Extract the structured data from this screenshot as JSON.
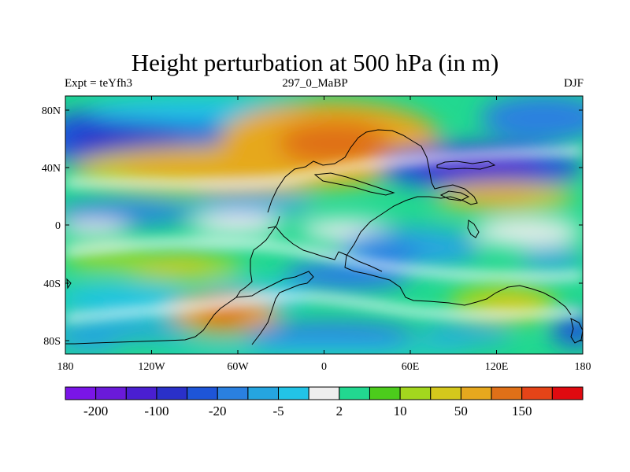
{
  "title": "Height perturbation at 500 hPa (in m)",
  "subtitle_left": "Expt = teYfh3",
  "subtitle_center": "297_0_MaBP",
  "subtitle_right": "DJF",
  "y_ticks": [
    "80N",
    "40N",
    "0",
    "40S",
    "80S"
  ],
  "x_ticks": [
    "180",
    "120W",
    "60W",
    "0",
    "60E",
    "120E",
    "180"
  ],
  "colorbar": {
    "colors": [
      "#7a15e8",
      "#6a1ad9",
      "#4a1fd1",
      "#2a30c9",
      "#1e55d8",
      "#2a80e0",
      "#25a5e0",
      "#22c3e6",
      "#eeeeee",
      "#22d890",
      "#4ccc1c",
      "#a3d71e",
      "#d4c81c",
      "#e6a81e",
      "#e07018",
      "#e54418",
      "#e00a10"
    ],
    "labels": [
      "-200",
      "-100",
      "-20",
      "-5",
      "2",
      "10",
      "50",
      "150"
    ]
  }
}
